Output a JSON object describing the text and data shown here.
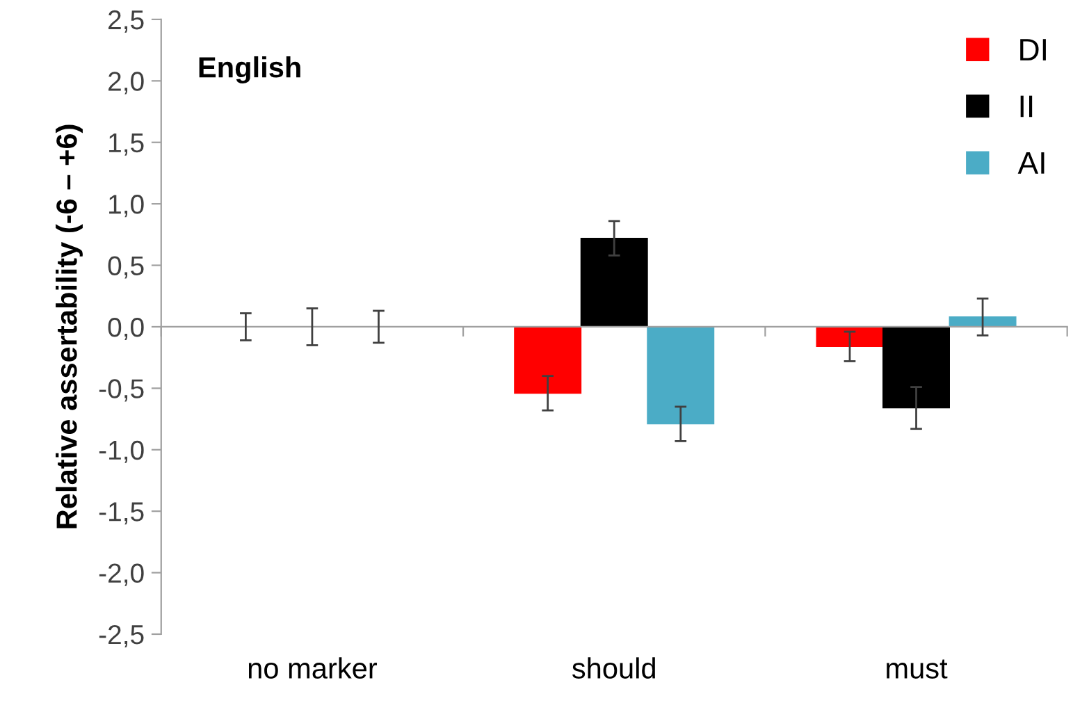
{
  "chart_data": {
    "type": "bar",
    "title": "English",
    "ylabel": "Relative assertability (-6 – +6)",
    "categories": [
      "no marker",
      "should",
      "must"
    ],
    "series": [
      {
        "name": "DI",
        "color": "#ff0000",
        "values": [
          0,
          -0.54,
          -0.16
        ],
        "errors": [
          0.11,
          0.14,
          0.12
        ]
      },
      {
        "name": "II",
        "color": "#000000",
        "values": [
          0,
          0.72,
          -0.66
        ],
        "errors": [
          0.15,
          0.14,
          0.17
        ]
      },
      {
        "name": "AI",
        "color": "#4bacc6",
        "values": [
          0,
          -0.79,
          0.08
        ],
        "errors": [
          0.13,
          0.14,
          0.15
        ]
      }
    ],
    "ylim": [
      -2.5,
      2.5
    ],
    "yticks": [
      {
        "value": -2.5,
        "label": "-2,5"
      },
      {
        "value": -2.0,
        "label": "-2,0"
      },
      {
        "value": -1.5,
        "label": "-1,5"
      },
      {
        "value": -1.0,
        "label": "-1,0"
      },
      {
        "value": -0.5,
        "label": "-0,5"
      },
      {
        "value": 0.0,
        "label": "0,0"
      },
      {
        "value": 0.5,
        "label": "0,5"
      },
      {
        "value": 1.0,
        "label": "1,0"
      },
      {
        "value": 1.5,
        "label": "1,5"
      },
      {
        "value": 2.0,
        "label": "2,0"
      },
      {
        "value": 2.5,
        "label": "2,5"
      }
    ],
    "legend": "top right"
  }
}
